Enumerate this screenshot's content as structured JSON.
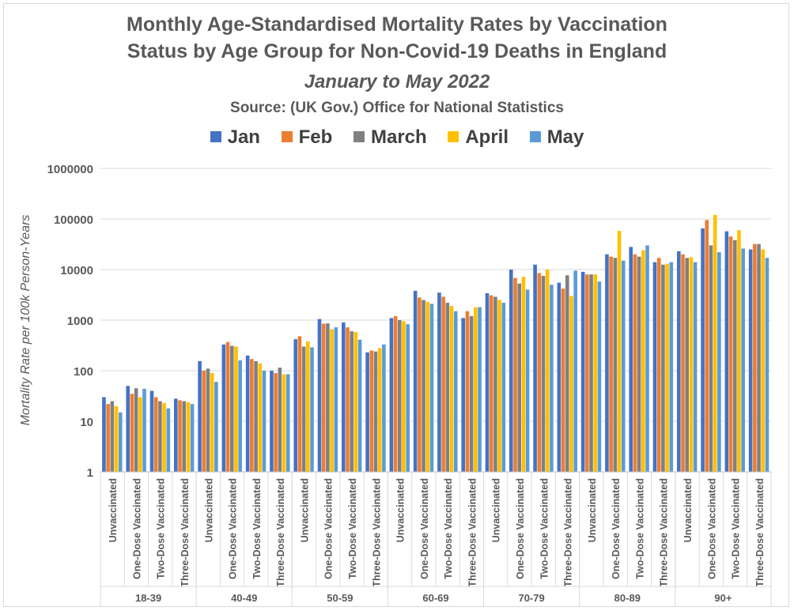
{
  "title_line1": "Monthly Age-Standardised Mortality Rates by Vaccination",
  "title_line2": "Status by Age Group for Non-Covid-19 Deaths in England",
  "subtitle": "January to May 2022",
  "source": "Source: (UK Gov.) Office for National Statistics",
  "colors": {
    "Jan": "#4472c4",
    "Feb": "#ed7d31",
    "March": "#808080",
    "April": "#ffc000",
    "May": "#5b9bd5"
  },
  "chart_data": {
    "type": "bar",
    "y_scale": "log",
    "ylim": [
      1,
      1000000
    ],
    "ylabel": "Mortality Rate per 100k Person-Years",
    "y_ticks": [
      "1",
      "10",
      "100",
      "1000",
      "10000",
      "100000",
      "1000000"
    ],
    "legend_position": "top",
    "grid": true,
    "groups": [
      "18-39",
      "40-49",
      "50-59",
      "60-69",
      "70-79",
      "80-89",
      "90+"
    ],
    "statuses": [
      "Unvaccinated",
      "One-Dose Vaccinated",
      "Two-Dose Vaccinated",
      "Three-Dose Vaccinated"
    ],
    "series": [
      {
        "name": "Jan",
        "values": [
          30,
          50,
          40,
          28,
          155,
          330,
          200,
          100,
          420,
          1050,
          900,
          230,
          1100,
          3800,
          3500,
          1100,
          3400,
          10000,
          12500,
          5500,
          9000,
          20000,
          28000,
          14000,
          23000,
          65000,
          57000,
          25000
        ]
      },
      {
        "name": "Feb",
        "values": [
          22,
          35,
          30,
          26,
          100,
          370,
          170,
          90,
          480,
          850,
          720,
          250,
          1200,
          2800,
          2900,
          1500,
          3100,
          6800,
          8500,
          4200,
          8000,
          18000,
          20000,
          17000,
          20000,
          95000,
          45000,
          32000
        ]
      },
      {
        "name": "March",
        "values": [
          25,
          45,
          25,
          25,
          110,
          310,
          155,
          115,
          300,
          860,
          600,
          240,
          1000,
          2500,
          2200,
          1200,
          2900,
          5300,
          7500,
          7700,
          8000,
          17000,
          18000,
          12500,
          17000,
          30000,
          38000,
          32000
        ]
      },
      {
        "name": "April",
        "values": [
          20,
          30,
          23,
          24,
          90,
          300,
          140,
          85,
          380,
          660,
          580,
          280,
          950,
          2300,
          1900,
          1800,
          2500,
          7200,
          10000,
          3000,
          8000,
          58000,
          24000,
          13000,
          17500,
          120000,
          60000,
          25000
        ]
      },
      {
        "name": "May",
        "values": [
          15,
          44,
          18,
          22,
          60,
          160,
          100,
          85,
          290,
          720,
          410,
          330,
          830,
          2100,
          1500,
          1800,
          2200,
          4000,
          5000,
          9500,
          5800,
          15000,
          30000,
          14000,
          14000,
          22000,
          26000,
          17000
        ]
      }
    ]
  }
}
